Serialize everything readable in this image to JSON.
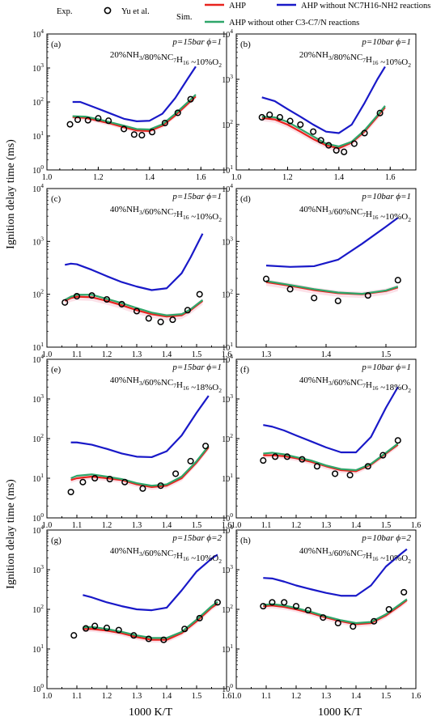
{
  "legend": {
    "exp_title": "Exp.",
    "exp_series": "Yu et al.",
    "sim_title": "Sim.",
    "sim_series": [
      "AHP",
      "AHP without NC7H16-NH2 reactions",
      "AHP without other C3-C7/N reactions"
    ]
  },
  "ylabel": "Ignition delay time (ms)",
  "xlabel": "1000 K/T",
  "colors": {
    "AHP": "#e8231e",
    "noNH2": "#1919c8",
    "noCN": "#2ea66a",
    "band": "#f7c8d6",
    "exp": "#000000"
  },
  "chart_data": [
    {
      "id": "a",
      "type": "line",
      "tag": "(a)",
      "cond1": "p=15bar   ϕ=1",
      "cond2": "20%NH3/80%NC7H16  ~10%O2",
      "xlim": [
        1.0,
        1.7
      ],
      "ylim_exp": [
        0,
        4
      ],
      "xticks": [
        "1.0",
        "1.2",
        "1.4",
        "1.6"
      ],
      "xticks_v": [
        1.0,
        1.2,
        1.4,
        1.6
      ],
      "yticks": [
        "10^0",
        "10^1",
        "10^2",
        "10^3",
        "10^4"
      ],
      "series": {
        "AHP": {
          "x": [
            1.1,
            1.15,
            1.2,
            1.25,
            1.3,
            1.35,
            1.4,
            1.45,
            1.5,
            1.55,
            1.58
          ],
          "y": [
            36,
            34,
            28,
            23,
            18,
            14.5,
            14,
            20,
            40,
            90,
            145
          ]
        },
        "noNH2": {
          "x": [
            1.1,
            1.13,
            1.18,
            1.25,
            1.3,
            1.35,
            1.4,
            1.45,
            1.5,
            1.55,
            1.58
          ],
          "y": [
            100,
            100,
            72,
            45,
            32,
            27,
            28,
            45,
            130,
            500,
            1100
          ]
        },
        "noCN": {
          "x": [
            1.1,
            1.15,
            1.2,
            1.25,
            1.3,
            1.35,
            1.4,
            1.45,
            1.5,
            1.55,
            1.58
          ],
          "y": [
            38,
            37,
            31,
            25,
            20,
            16,
            15.5,
            22,
            45,
            100,
            165
          ]
        },
        "exp": {
          "x": [
            1.09,
            1.12,
            1.16,
            1.2,
            1.24,
            1.3,
            1.34,
            1.37,
            1.41,
            1.46,
            1.51,
            1.56
          ],
          "y": [
            22,
            30,
            29,
            33,
            28,
            16,
            11,
            10.5,
            13,
            24,
            48,
            120
          ]
        }
      }
    },
    {
      "id": "b",
      "type": "line",
      "tag": "(b)",
      "cond1": "p=10bar   ϕ=1",
      "cond2": "20%NH3/80%NC7H16  ~10%O2",
      "xlim": [
        1.0,
        1.7
      ],
      "ylim_exp": [
        1,
        4
      ],
      "xticks": [
        "1.0",
        "1.2",
        "1.4",
        "1.6"
      ],
      "xticks_v": [
        1.0,
        1.2,
        1.4,
        1.6
      ],
      "yticks": [
        "10^1",
        "10^2",
        "10^3",
        "10^4"
      ],
      "series": {
        "AHP": {
          "x": [
            1.1,
            1.15,
            1.2,
            1.25,
            1.3,
            1.35,
            1.4,
            1.45,
            1.5,
            1.55,
            1.58
          ],
          "y": [
            140,
            130,
            100,
            70,
            48,
            35,
            30,
            40,
            70,
            150,
            240
          ]
        },
        "noNH2": {
          "x": [
            1.1,
            1.15,
            1.2,
            1.25,
            1.3,
            1.35,
            1.4,
            1.45,
            1.5,
            1.55,
            1.58
          ],
          "y": [
            400,
            330,
            220,
            150,
            100,
            70,
            65,
            100,
            300,
            1000,
            1900
          ]
        },
        "noCN": {
          "x": [
            1.1,
            1.15,
            1.2,
            1.25,
            1.3,
            1.35,
            1.4,
            1.45,
            1.5,
            1.55,
            1.58
          ],
          "y": [
            150,
            145,
            115,
            80,
            55,
            38,
            33,
            42,
            75,
            160,
            260
          ]
        },
        "exp": {
          "x": [
            1.1,
            1.13,
            1.17,
            1.21,
            1.25,
            1.3,
            1.33,
            1.36,
            1.39,
            1.42,
            1.46,
            1.5,
            1.56
          ],
          "y": [
            145,
            165,
            145,
            120,
            100,
            70,
            45,
            35,
            27,
            25,
            38,
            65,
            180
          ]
        }
      }
    },
    {
      "id": "c",
      "type": "line",
      "tag": "(c)",
      "cond1": "p=15bar   ϕ=1",
      "cond2": "40%NH3/60%NC7H16  ~10%O2",
      "xlim": [
        1.0,
        1.6
      ],
      "ylim_exp": [
        1,
        4
      ],
      "xticks": [
        "1.0",
        "1.1",
        "1.2",
        "1.3",
        "1.4",
        "1.5",
        "1.6"
      ],
      "xticks_v": [
        1.0,
        1.1,
        1.2,
        1.3,
        1.4,
        1.5,
        1.6
      ],
      "yticks": [
        "10^1",
        "10^2",
        "10^3",
        "10^4"
      ],
      "series": {
        "AHP": {
          "x": [
            1.06,
            1.08,
            1.1,
            1.15,
            1.2,
            1.25,
            1.3,
            1.35,
            1.4,
            1.45,
            1.48,
            1.52
          ],
          "y": [
            75,
            85,
            90,
            88,
            75,
            62,
            50,
            42,
            38,
            40,
            50,
            75
          ]
        },
        "noNH2": {
          "x": [
            1.06,
            1.08,
            1.1,
            1.15,
            1.2,
            1.25,
            1.3,
            1.35,
            1.4,
            1.45,
            1.48,
            1.52
          ],
          "y": [
            360,
            380,
            370,
            290,
            220,
            170,
            140,
            120,
            130,
            250,
            500,
            1400
          ]
        },
        "noCN": {
          "x": [
            1.06,
            1.08,
            1.1,
            1.15,
            1.2,
            1.25,
            1.3,
            1.35,
            1.4,
            1.45,
            1.48,
            1.52
          ],
          "y": [
            78,
            90,
            98,
            98,
            82,
            68,
            55,
            45,
            40,
            42,
            52,
            78
          ]
        },
        "exp": {
          "x": [
            1.06,
            1.1,
            1.15,
            1.2,
            1.25,
            1.3,
            1.34,
            1.38,
            1.42,
            1.47,
            1.51
          ],
          "y": [
            70,
            92,
            95,
            80,
            65,
            48,
            35,
            30,
            33,
            50,
            100
          ]
        }
      }
    },
    {
      "id": "d",
      "type": "line",
      "tag": "(d)",
      "cond1": "p=10bar   ϕ=1",
      "cond2": "40%NH3/60%NC7H16  ~10%O2",
      "xlim": [
        1.25,
        1.55
      ],
      "ylim_exp": [
        1,
        4
      ],
      "xticks": [
        "1.3",
        "1.4",
        "1.5"
      ],
      "xticks_v": [
        1.3,
        1.4,
        1.5
      ],
      "yticks": [
        "10^1",
        "10^2",
        "10^3",
        "10^4"
      ],
      "series": {
        "AHP": {
          "x": [
            1.3,
            1.34,
            1.38,
            1.42,
            1.46,
            1.5,
            1.52
          ],
          "y": [
            170,
            145,
            120,
            105,
            100,
            115,
            135
          ]
        },
        "noNH2": {
          "x": [
            1.3,
            1.34,
            1.38,
            1.42,
            1.46,
            1.5,
            1.52
          ],
          "y": [
            350,
            330,
            340,
            450,
            900,
            1900,
            2800
          ]
        },
        "noCN": {
          "x": [
            1.3,
            1.34,
            1.38,
            1.42,
            1.46,
            1.5,
            1.52
          ],
          "y": [
            178,
            150,
            125,
            108,
            102,
            118,
            140
          ]
        },
        "exp": {
          "x": [
            1.3,
            1.34,
            1.38,
            1.42,
            1.47,
            1.52
          ],
          "y": [
            195,
            125,
            85,
            75,
            95,
            185
          ]
        }
      }
    },
    {
      "id": "e",
      "type": "line",
      "tag": "(e)",
      "cond1": "p=15bar   ϕ=1",
      "cond2": "40%NH3/60%NC7H16  ~18%O2",
      "xlim": [
        1.0,
        1.6
      ],
      "ylim_exp": [
        0,
        4
      ],
      "xticks": [
        "1.0",
        "1.1",
        "1.2",
        "1.3",
        "1.4",
        "1.5",
        "1.6"
      ],
      "xticks_v": [
        1.0,
        1.1,
        1.2,
        1.3,
        1.4,
        1.5,
        1.6
      ],
      "yticks": [
        "10^0",
        "10^1",
        "10^2",
        "10^3",
        "10^4"
      ],
      "series": {
        "AHP": {
          "x": [
            1.08,
            1.1,
            1.15,
            1.2,
            1.25,
            1.3,
            1.35,
            1.4,
            1.45,
            1.5,
            1.54
          ],
          "y": [
            9,
            10,
            11,
            10,
            9,
            7,
            6,
            6.5,
            10,
            25,
            60
          ]
        },
        "noNH2": {
          "x": [
            1.08,
            1.1,
            1.15,
            1.2,
            1.25,
            1.3,
            1.35,
            1.4,
            1.45,
            1.5,
            1.54
          ],
          "y": [
            80,
            80,
            70,
            55,
            42,
            35,
            34,
            48,
            120,
            450,
            1200
          ]
        },
        "noCN": {
          "x": [
            1.08,
            1.1,
            1.15,
            1.2,
            1.25,
            1.3,
            1.35,
            1.4,
            1.45,
            1.5,
            1.54
          ],
          "y": [
            10,
            11.5,
            12.5,
            11,
            9.5,
            7.5,
            6.5,
            7,
            11,
            27,
            65
          ]
        },
        "exp": {
          "x": [
            1.08,
            1.12,
            1.16,
            1.21,
            1.26,
            1.32,
            1.38,
            1.43,
            1.48,
            1.53
          ],
          "y": [
            4.5,
            8,
            10,
            9.5,
            8,
            5.5,
            6.5,
            13,
            27,
            65
          ]
        }
      }
    },
    {
      "id": "f",
      "type": "line",
      "tag": "(f)",
      "cond1": "p=10bar   ϕ=1",
      "cond2": "40%NH3/60%NC7H16  ~18%O2",
      "xlim": [
        1.0,
        1.6
      ],
      "ylim_exp": [
        0,
        4
      ],
      "xticks": [
        "1.0",
        "1.1",
        "1.2",
        "1.3",
        "1.4",
        "1.5",
        "1.6"
      ],
      "xticks_v": [
        1.0,
        1.1,
        1.2,
        1.3,
        1.4,
        1.5,
        1.6
      ],
      "yticks": [
        "10^0",
        "10^1",
        "10^2",
        "10^3",
        "10^4"
      ],
      "series": {
        "AHP": {
          "x": [
            1.09,
            1.12,
            1.16,
            1.2,
            1.25,
            1.3,
            1.35,
            1.4,
            1.45,
            1.5,
            1.54
          ],
          "y": [
            38,
            38,
            36,
            32,
            26,
            20,
            16,
            15,
            22,
            42,
            70
          ]
        },
        "noNH2": {
          "x": [
            1.09,
            1.12,
            1.16,
            1.2,
            1.25,
            1.3,
            1.35,
            1.4,
            1.45,
            1.5,
            1.54
          ],
          "y": [
            220,
            200,
            160,
            120,
            85,
            60,
            45,
            45,
            110,
            600,
            2000
          ]
        },
        "noCN": {
          "x": [
            1.09,
            1.12,
            1.16,
            1.2,
            1.25,
            1.3,
            1.35,
            1.4,
            1.45,
            1.5,
            1.54
          ],
          "y": [
            42,
            44,
            40,
            34,
            28,
            21,
            17,
            16,
            23,
            44,
            75
          ]
        },
        "exp": {
          "x": [
            1.09,
            1.13,
            1.17,
            1.22,
            1.27,
            1.33,
            1.38,
            1.44,
            1.49,
            1.54
          ],
          "y": [
            28,
            35,
            35,
            30,
            20,
            13,
            12,
            20,
            38,
            90
          ]
        }
      }
    },
    {
      "id": "g",
      "type": "line",
      "tag": "(g)",
      "cond1": "p=15bar   ϕ=2",
      "cond2": "40%NH3/60%NC7H16  ~10%O2",
      "xlim": [
        1.0,
        1.6
      ],
      "ylim_exp": [
        0,
        4
      ],
      "xticks": [
        "1.0",
        "1.1",
        "1.2",
        "1.3",
        "1.4",
        "1.5",
        "1.6"
      ],
      "xticks_v": [
        1.0,
        1.1,
        1.2,
        1.3,
        1.4,
        1.5,
        1.6
      ],
      "yticks": [
        "10^0",
        "10^1",
        "10^2",
        "10^3",
        "10^4"
      ],
      "series": {
        "AHP": {
          "x": [
            1.12,
            1.15,
            1.2,
            1.25,
            1.3,
            1.35,
            1.4,
            1.45,
            1.5,
            1.55,
            1.57
          ],
          "y": [
            32,
            32,
            29,
            25,
            20,
            17,
            17,
            25,
            50,
            110,
            140
          ]
        },
        "noNH2": {
          "x": [
            1.12,
            1.15,
            1.2,
            1.25,
            1.3,
            1.35,
            1.4,
            1.45,
            1.5,
            1.55,
            1.57
          ],
          "y": [
            230,
            200,
            150,
            120,
            100,
            95,
            110,
            300,
            900,
            1900,
            2400
          ]
        },
        "noCN": {
          "x": [
            1.12,
            1.15,
            1.2,
            1.25,
            1.3,
            1.35,
            1.4,
            1.45,
            1.5,
            1.55,
            1.57
          ],
          "y": [
            35,
            36,
            32,
            27,
            22,
            19,
            19,
            27,
            55,
            120,
            155
          ]
        },
        "exp": {
          "x": [
            1.09,
            1.13,
            1.16,
            1.2,
            1.24,
            1.29,
            1.34,
            1.39,
            1.46,
            1.51,
            1.57
          ],
          "y": [
            22,
            33,
            38,
            34,
            30,
            22,
            18,
            17,
            32,
            60,
            150
          ]
        }
      }
    },
    {
      "id": "h",
      "type": "line",
      "tag": "(h)",
      "cond1": "p=10bar   ϕ=2",
      "cond2": "40%NH3/60%NC7H16  ~10%O2",
      "xlim": [
        1.0,
        1.6
      ],
      "ylim_exp": [
        0,
        4
      ],
      "xticks": [
        "1.0",
        "1.1",
        "1.2",
        "1.3",
        "1.4",
        "1.5",
        "1.6"
      ],
      "xticks_v": [
        1.0,
        1.1,
        1.2,
        1.3,
        1.4,
        1.5,
        1.6
      ],
      "yticks": [
        "10^0",
        "10^1",
        "10^2",
        "10^3",
        "10^4"
      ],
      "series": {
        "AHP": {
          "x": [
            1.09,
            1.12,
            1.16,
            1.2,
            1.25,
            1.3,
            1.35,
            1.4,
            1.45,
            1.5,
            1.55,
            1.57
          ],
          "y": [
            120,
            125,
            115,
            100,
            80,
            62,
            50,
            42,
            45,
            70,
            130,
            170
          ]
        },
        "noNH2": {
          "x": [
            1.09,
            1.12,
            1.16,
            1.2,
            1.25,
            1.3,
            1.35,
            1.4,
            1.45,
            1.5,
            1.55,
            1.57
          ],
          "y": [
            620,
            600,
            500,
            400,
            320,
            260,
            220,
            220,
            400,
            1200,
            2500,
            3300
          ]
        },
        "noCN": {
          "x": [
            1.09,
            1.12,
            1.16,
            1.2,
            1.25,
            1.3,
            1.35,
            1.4,
            1.45,
            1.5,
            1.55,
            1.57
          ],
          "y": [
            130,
            135,
            125,
            108,
            86,
            66,
            53,
            45,
            48,
            75,
            140,
            180
          ]
        },
        "exp": {
          "x": [
            1.09,
            1.12,
            1.16,
            1.2,
            1.24,
            1.29,
            1.34,
            1.39,
            1.46,
            1.51,
            1.56
          ],
          "y": [
            120,
            150,
            150,
            120,
            95,
            62,
            45,
            37,
            50,
            100,
            270
          ]
        }
      }
    }
  ]
}
